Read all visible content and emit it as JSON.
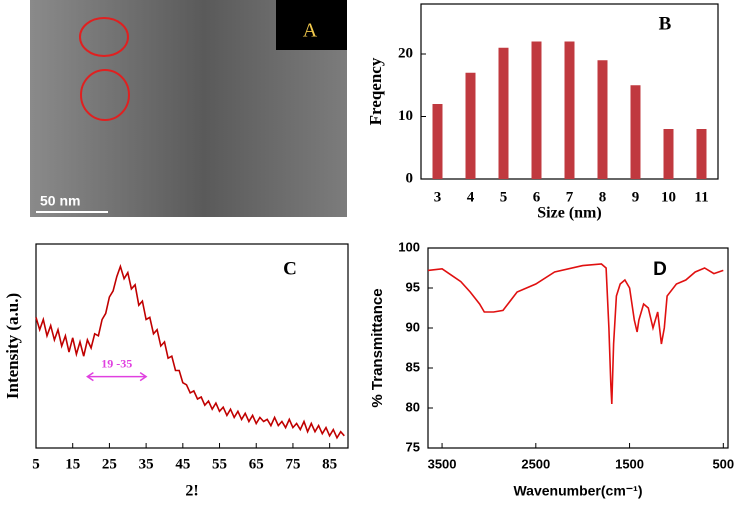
{
  "chart_data": [
    {
      "type": "image",
      "label": "A",
      "scale_bar": "50 nm"
    },
    {
      "type": "bar",
      "label": "B",
      "xlabel": "Size (nm)",
      "ylabel": "Freqency",
      "categories": [
        "3",
        "4",
        "5",
        "6",
        "7",
        "8",
        "9",
        "10",
        "11"
      ],
      "values": [
        12,
        17,
        21,
        22,
        22,
        19,
        15,
        8,
        8
      ],
      "color": "#c0393f",
      "ylim": [
        0,
        28
      ],
      "yticks": [
        0,
        10,
        20
      ]
    },
    {
      "type": "line",
      "label": "C",
      "xlabel": "2!",
      "ylabel": "Intensity (a.u.)",
      "color": "#c00000",
      "x": [
        5,
        6,
        7,
        8,
        9,
        10,
        11,
        12,
        13,
        14,
        15,
        16,
        17,
        18,
        19,
        20,
        21,
        22,
        23,
        24,
        25,
        26,
        27,
        28,
        29,
        30,
        31,
        32,
        33,
        34,
        35,
        36,
        37,
        38,
        39,
        40,
        41,
        42,
        43,
        44,
        45,
        46,
        47,
        48,
        49,
        50,
        51,
        52,
        53,
        54,
        55,
        56,
        57,
        58,
        59,
        60,
        61,
        62,
        63,
        64,
        65,
        66,
        67,
        68,
        69,
        70,
        71,
        72,
        73,
        74,
        75,
        76,
        77,
        78,
        79,
        80,
        81,
        82,
        83,
        84,
        85,
        86,
        87,
        88,
        89
      ],
      "values": [
        64,
        58,
        63,
        55,
        60,
        53,
        58,
        50,
        55,
        47,
        54,
        46,
        52,
        45,
        53,
        49,
        56,
        55,
        63,
        66,
        74,
        77,
        84,
        89,
        83,
        86,
        78,
        80,
        70,
        72,
        63,
        64,
        56,
        58,
        50,
        52,
        44,
        45,
        38,
        38,
        32,
        31,
        27,
        28,
        24,
        25,
        21,
        23,
        19,
        22,
        18,
        20,
        16,
        19,
        15,
        18,
        14,
        17,
        13,
        16,
        12,
        15,
        13,
        14,
        11,
        15,
        11,
        13,
        10,
        14,
        10,
        12,
        9,
        13,
        8,
        12,
        8,
        11,
        7,
        10,
        6,
        9,
        5,
        8,
        6
      ],
      "xlim": [
        5,
        90
      ],
      "xticks": [
        5,
        15,
        25,
        35,
        45,
        55,
        65,
        75,
        85
      ],
      "ylim": [
        0,
        100
      ],
      "annotation": {
        "text": "19 -35",
        "x": [
          19,
          35
        ],
        "y": 35,
        "color": "#e040e0"
      }
    },
    {
      "type": "line",
      "label": "D",
      "xlabel": "Wavenumber(cm⁻¹)",
      "ylabel": "% Transmittance",
      "color": "#e01010",
      "x": [
        3650,
        3500,
        3400,
        3300,
        3200,
        3100,
        3050,
        2950,
        2850,
        2700,
        2500,
        2300,
        2000,
        1800,
        1750,
        1720,
        1700,
        1690,
        1670,
        1640,
        1600,
        1550,
        1500,
        1450,
        1420,
        1400,
        1350,
        1300,
        1250,
        1200,
        1160,
        1130,
        1100,
        1000,
        900,
        800,
        700,
        600,
        500
      ],
      "values": [
        97.2,
        97.4,
        96.6,
        95.8,
        94.5,
        93,
        92,
        92,
        92.2,
        94.5,
        95.5,
        97,
        97.8,
        98,
        97.5,
        90,
        83,
        80.5,
        88,
        94,
        95.5,
        96,
        95,
        91,
        89.5,
        91,
        93,
        92.5,
        90,
        92,
        88,
        90,
        94,
        95.5,
        96,
        97,
        97.5,
        96.8,
        97.2
      ],
      "xlim": [
        3650,
        450
      ],
      "xticks": [
        3500,
        2500,
        1500,
        500
      ],
      "ylim": [
        75,
        100
      ],
      "yticks": [
        75,
        80,
        85,
        90,
        95,
        100
      ]
    }
  ]
}
